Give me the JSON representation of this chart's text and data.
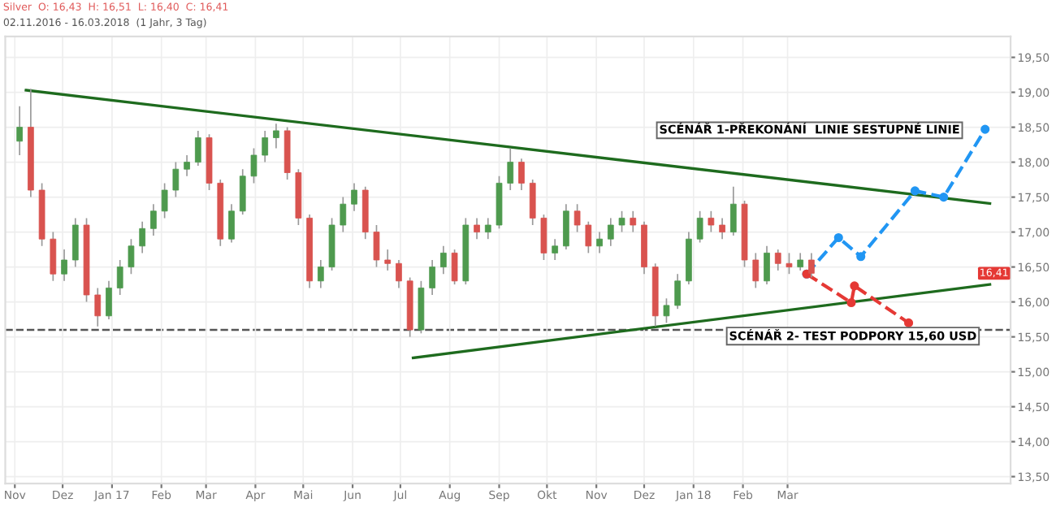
{
  "chart_data": {
    "type": "candlestick",
    "title": "Silver  O: 16,43  H: 16,51  L: 16,40  C: 16,41",
    "subtitle": "02.11.2016 - 16.03.2018  (1 Jahr, 3 Tag)",
    "x": [
      "2016-11-04",
      "2016-11-11",
      "2016-11-18",
      "2016-11-25",
      "2016-12-02",
      "2016-12-09",
      "2016-12-16",
      "2016-12-23",
      "2016-12-30",
      "2017-01-06",
      "2017-01-13",
      "2017-01-20",
      "2017-01-27",
      "2017-02-03",
      "2017-02-10",
      "2017-02-17",
      "2017-02-24",
      "2017-03-03",
      "2017-03-10",
      "2017-03-17",
      "2017-03-24",
      "2017-03-31",
      "2017-04-07",
      "2017-04-14",
      "2017-04-21",
      "2017-04-28",
      "2017-05-05",
      "2017-05-12",
      "2017-05-19",
      "2017-05-26",
      "2017-06-02",
      "2017-06-09",
      "2017-06-16",
      "2017-06-23",
      "2017-06-30",
      "2017-07-07",
      "2017-07-14",
      "2017-07-21",
      "2017-07-28",
      "2017-08-04",
      "2017-08-11",
      "2017-08-18",
      "2017-08-25",
      "2017-09-01",
      "2017-09-08",
      "2017-09-15",
      "2017-09-22",
      "2017-09-29",
      "2017-10-06",
      "2017-10-13",
      "2017-10-20",
      "2017-10-27",
      "2017-11-03",
      "2017-11-10",
      "2017-11-17",
      "2017-11-24",
      "2017-12-01",
      "2017-12-08",
      "2017-12-15",
      "2017-12-22",
      "2017-12-29",
      "2018-01-05",
      "2018-01-12",
      "2018-01-19",
      "2018-01-26",
      "2018-02-02",
      "2018-02-09",
      "2018-02-16",
      "2018-02-23",
      "2018-03-02",
      "2018-03-09",
      "2018-03-16"
    ],
    "ohlc": [
      [
        18.3,
        18.8,
        18.1,
        18.5
      ],
      [
        18.5,
        19.05,
        17.5,
        17.6
      ],
      [
        17.6,
        17.7,
        16.8,
        16.9
      ],
      [
        16.9,
        17.0,
        16.3,
        16.4
      ],
      [
        16.4,
        16.75,
        16.3,
        16.6
      ],
      [
        16.6,
        17.2,
        16.5,
        17.1
      ],
      [
        17.1,
        17.2,
        16.0,
        16.1
      ],
      [
        16.1,
        16.2,
        15.65,
        15.8
      ],
      [
        15.8,
        16.3,
        15.75,
        16.2
      ],
      [
        16.2,
        16.6,
        16.1,
        16.5
      ],
      [
        16.5,
        16.9,
        16.4,
        16.8
      ],
      [
        16.8,
        17.15,
        16.7,
        17.05
      ],
      [
        17.05,
        17.4,
        16.95,
        17.3
      ],
      [
        17.3,
        17.7,
        17.2,
        17.6
      ],
      [
        17.6,
        18.0,
        17.5,
        17.9
      ],
      [
        17.9,
        18.1,
        17.8,
        18.0
      ],
      [
        18.0,
        18.45,
        17.95,
        18.35
      ],
      [
        18.35,
        18.4,
        17.6,
        17.7
      ],
      [
        17.7,
        17.75,
        16.8,
        16.9
      ],
      [
        16.9,
        17.4,
        16.85,
        17.3
      ],
      [
        17.3,
        17.9,
        17.25,
        17.8
      ],
      [
        17.8,
        18.2,
        17.7,
        18.1
      ],
      [
        18.1,
        18.45,
        18.0,
        18.35
      ],
      [
        18.35,
        18.55,
        18.2,
        18.45
      ],
      [
        18.45,
        18.5,
        17.75,
        17.85
      ],
      [
        17.85,
        17.9,
        17.1,
        17.2
      ],
      [
        17.2,
        17.25,
        16.2,
        16.3
      ],
      [
        16.3,
        16.6,
        16.2,
        16.5
      ],
      [
        16.5,
        17.2,
        16.45,
        17.1
      ],
      [
        17.1,
        17.5,
        17.0,
        17.4
      ],
      [
        17.4,
        17.7,
        17.3,
        17.6
      ],
      [
        17.6,
        17.65,
        16.9,
        17.0
      ],
      [
        17.0,
        17.1,
        16.5,
        16.6
      ],
      [
        16.6,
        16.75,
        16.45,
        16.55
      ],
      [
        16.55,
        16.6,
        16.2,
        16.3
      ],
      [
        16.3,
        16.35,
        15.5,
        15.6
      ],
      [
        15.6,
        16.3,
        15.55,
        16.2
      ],
      [
        16.2,
        16.6,
        16.1,
        16.5
      ],
      [
        16.5,
        16.8,
        16.4,
        16.7
      ],
      [
        16.7,
        16.75,
        16.25,
        16.3
      ],
      [
        16.3,
        17.2,
        16.25,
        17.1
      ],
      [
        17.1,
        17.2,
        16.9,
        17.0
      ],
      [
        17.0,
        17.2,
        16.9,
        17.1
      ],
      [
        17.1,
        17.8,
        17.05,
        17.7
      ],
      [
        17.7,
        18.2,
        17.6,
        18.0
      ],
      [
        18.0,
        18.05,
        17.6,
        17.7
      ],
      [
        17.7,
        17.75,
        17.1,
        17.2
      ],
      [
        17.2,
        17.25,
        16.6,
        16.7
      ],
      [
        16.7,
        16.9,
        16.6,
        16.8
      ],
      [
        16.8,
        17.4,
        16.75,
        17.3
      ],
      [
        17.3,
        17.4,
        17.0,
        17.1
      ],
      [
        17.1,
        17.15,
        16.7,
        16.8
      ],
      [
        16.8,
        17.0,
        16.7,
        16.9
      ],
      [
        16.9,
        17.2,
        16.8,
        17.1
      ],
      [
        17.1,
        17.3,
        17.0,
        17.2
      ],
      [
        17.2,
        17.3,
        17.0,
        17.1
      ],
      [
        17.1,
        17.15,
        16.4,
        16.5
      ],
      [
        16.5,
        16.55,
        15.65,
        15.8
      ],
      [
        15.8,
        16.05,
        15.7,
        15.95
      ],
      [
        15.95,
        16.4,
        15.9,
        16.3
      ],
      [
        16.3,
        17.0,
        16.25,
        16.9
      ],
      [
        16.9,
        17.3,
        16.85,
        17.2
      ],
      [
        17.2,
        17.3,
        17.0,
        17.1
      ],
      [
        17.1,
        17.2,
        16.9,
        17.0
      ],
      [
        17.0,
        17.65,
        16.95,
        17.4
      ],
      [
        17.4,
        17.45,
        16.5,
        16.6
      ],
      [
        16.6,
        16.7,
        16.2,
        16.3
      ],
      [
        16.3,
        16.8,
        16.25,
        16.7
      ],
      [
        16.7,
        16.75,
        16.45,
        16.55
      ],
      [
        16.55,
        16.7,
        16.4,
        16.5
      ],
      [
        16.5,
        16.7,
        16.45,
        16.6
      ],
      [
        16.6,
        16.7,
        16.35,
        16.41
      ]
    ],
    "colors": [
      "#4e9a4e",
      "#d9534f",
      "#d9534f",
      "#d9534f",
      "#4e9a4e",
      "#4e9a4e",
      "#d9534f",
      "#d9534f",
      "#4e9a4e",
      "#4e9a4e",
      "#4e9a4e",
      "#4e9a4e",
      "#4e9a4e",
      "#4e9a4e",
      "#4e9a4e",
      "#4e9a4e",
      "#4e9a4e",
      "#d9534f",
      "#d9534f",
      "#4e9a4e",
      "#4e9a4e",
      "#4e9a4e",
      "#4e9a4e",
      "#4e9a4e",
      "#d9534f",
      "#d9534f",
      "#d9534f",
      "#4e9a4e",
      "#4e9a4e",
      "#4e9a4e",
      "#4e9a4e",
      "#d9534f",
      "#d9534f",
      "#d9534f",
      "#d9534f",
      "#d9534f",
      "#4e9a4e",
      "#4e9a4e",
      "#4e9a4e",
      "#d9534f",
      "#4e9a4e",
      "#d9534f",
      "#4e9a4e",
      "#4e9a4e",
      "#4e9a4e",
      "#d9534f",
      "#d9534f",
      "#d9534f",
      "#4e9a4e",
      "#4e9a4e",
      "#d9534f",
      "#d9534f",
      "#4e9a4e",
      "#4e9a4e",
      "#4e9a4e",
      "#d9534f",
      "#d9534f",
      "#d9534f",
      "#4e9a4e",
      "#4e9a4e",
      "#4e9a4e",
      "#4e9a4e",
      "#d9534f",
      "#d9534f",
      "#4e9a4e",
      "#d9534f",
      "#d9534f",
      "#4e9a4e",
      "#d9534f",
      "#d9534f",
      "#4e9a4e",
      "#d9534f"
    ],
    "series": [
      {
        "type": "line",
        "color": "#1e6b1e",
        "line_style": "solid",
        "marker": "none",
        "x": [
          "2016-11-08",
          "2018-07-06"
        ],
        "values": [
          19.03,
          17.41
        ]
      },
      {
        "type": "line",
        "color": "#1e6b1e",
        "line_style": "solid",
        "marker": "none",
        "x": [
          "2017-07-09",
          "2018-07-06"
        ],
        "values": [
          15.2,
          16.25
        ]
      },
      {
        "type": "line",
        "color": "#2196f3",
        "line_style": "dashed",
        "marker": "circle",
        "x": [
          "2018-03-13",
          "2018-04-02",
          "2018-04-16",
          "2018-05-20",
          "2018-06-07",
          "2018-07-03"
        ],
        "values": [
          16.4,
          16.92,
          16.65,
          17.59,
          17.5,
          18.47
        ]
      },
      {
        "type": "line",
        "color": "#e53935",
        "line_style": "dashed",
        "marker": "circle",
        "x": [
          "2018-03-13",
          "2018-04-10",
          "2018-04-12",
          "2018-05-16"
        ],
        "values": [
          16.4,
          15.99,
          16.23,
          15.7
        ]
      }
    ],
    "ref_lines": [
      {
        "axis": "y",
        "value": 15.6,
        "color": "#555555",
        "line_style": "dashed"
      }
    ],
    "annotations": [
      "SCÉNÁŘ 1-PŘEKONÁNÍ  LINIE SESTUPNÉ LINIE",
      {
        "text": "SCÉNÁŘ 2- TEST PODPORY 15,60 USD",
        "x": "2018-04-11",
        "y": 15.51
      },
      "16,41"
    ],
    "xlim": [
      "2016-10-26",
      "2018-07-19"
    ],
    "xticks": [
      {
        "value": "2016-11-01",
        "label": "Nov"
      },
      {
        "value": "2016-12-01",
        "label": "Dez"
      },
      {
        "value": "2017-01-01",
        "label": "Jan 17"
      },
      {
        "value": "2017-02-01",
        "label": "Feb"
      },
      {
        "value": "2017-03-01",
        "label": "Mar"
      },
      {
        "value": "2017-04-01",
        "label": "Apr"
      },
      {
        "value": "2017-05-01",
        "label": "Mai"
      },
      {
        "value": "2017-06-01",
        "label": "Jun"
      },
      {
        "value": "2017-07-01",
        "label": "Jul"
      },
      {
        "value": "2017-08-01",
        "label": "Aug"
      },
      {
        "value": "2017-09-01",
        "label": "Sep"
      },
      {
        "value": "2017-10-01",
        "label": "Okt"
      },
      {
        "value": "2017-11-01",
        "label": "Nov"
      },
      {
        "value": "2017-12-01",
        "label": "Dez"
      },
      {
        "value": "2018-01-01",
        "label": "Jan 18"
      },
      {
        "value": "2018-02-01",
        "label": "Feb"
      },
      {
        "value": "2018-03-01",
        "label": "Mar"
      }
    ],
    "ylim": [
      13.4,
      19.8
    ],
    "yticks": [
      {
        "value": 13.5,
        "label": "13,50"
      },
      {
        "value": 14,
        "label": "14,00"
      },
      {
        "value": 14.5,
        "label": "14,50"
      },
      {
        "value": 15,
        "label": "15,00"
      },
      {
        "value": 15.5,
        "label": "15,50"
      },
      {
        "value": 16,
        "label": "16,00"
      },
      {
        "value": 16.5,
        "label": "16,50"
      },
      {
        "value": 17,
        "label": "17,00"
      },
      {
        "value": 17.5,
        "label": "17,50"
      },
      {
        "value": 18,
        "label": "18,00"
      },
      {
        "value": 18.5,
        "label": "18,50"
      },
      {
        "value": 19,
        "label": "19,00"
      },
      {
        "value": 19.5,
        "label": "19,50"
      }
    ],
    "grid": true
  }
}
